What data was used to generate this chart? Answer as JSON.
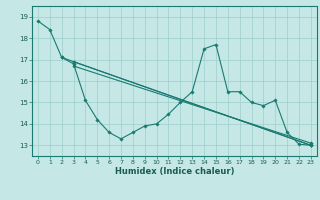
{
  "xlabel": "Humidex (Indice chaleur)",
  "xlim": [
    -0.5,
    23.5
  ],
  "ylim": [
    12.5,
    19.5
  ],
  "yticks": [
    13,
    14,
    15,
    16,
    17,
    18,
    19
  ],
  "xticks": [
    0,
    1,
    2,
    3,
    4,
    5,
    6,
    7,
    8,
    9,
    10,
    11,
    12,
    13,
    14,
    15,
    16,
    17,
    18,
    19,
    20,
    21,
    22,
    23
  ],
  "bg_color": "#c5e8e6",
  "grid_color": "#9ecfcc",
  "line_color": "#1a7a72",
  "lines": [
    {
      "x": [
        0,
        1,
        2,
        3,
        4,
        5,
        6,
        7,
        8,
        9,
        10,
        11,
        12,
        13,
        14,
        15,
        16,
        17,
        18,
        19,
        20,
        21,
        22,
        23
      ],
      "y": [
        18.8,
        18.4,
        17.1,
        16.8,
        15.1,
        14.2,
        13.6,
        13.3,
        13.6,
        13.9,
        14.0,
        14.45,
        15.0,
        15.5,
        17.5,
        17.7,
        15.5,
        15.5,
        15.0,
        14.85,
        15.1,
        13.6,
        13.05,
        13.0
      ]
    },
    {
      "x": [
        2,
        23
      ],
      "y": [
        17.1,
        13.0
      ]
    },
    {
      "x": [
        3,
        23
      ],
      "y": [
        16.9,
        13.0
      ]
    },
    {
      "x": [
        3,
        23
      ],
      "y": [
        16.7,
        13.1
      ]
    }
  ]
}
